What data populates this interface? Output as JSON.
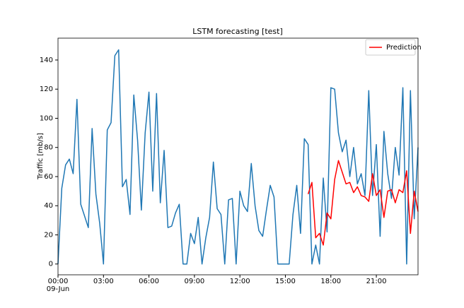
{
  "chart_data": {
    "type": "line",
    "title": "LSTM forecasting [test]",
    "ylabel": "Traffic [mb/s]",
    "x_date_label": "09-Jun",
    "x": [
      0,
      0.25,
      0.5,
      0.75,
      1,
      1.25,
      1.5,
      1.75,
      2,
      2.25,
      2.5,
      2.75,
      3,
      3.25,
      3.5,
      3.75,
      4,
      4.25,
      4.5,
      4.75,
      5,
      5.25,
      5.5,
      5.75,
      6,
      6.25,
      6.5,
      6.75,
      7,
      7.25,
      7.5,
      7.75,
      8,
      8.25,
      8.5,
      8.75,
      9,
      9.25,
      9.5,
      9.75,
      10,
      10.25,
      10.5,
      10.75,
      11,
      11.25,
      11.5,
      11.75,
      12,
      12.25,
      12.5,
      12.75,
      13,
      13.25,
      13.5,
      13.75,
      14,
      14.25,
      14.5,
      14.75,
      15,
      15.25,
      15.5,
      15.75,
      16,
      16.25,
      16.5,
      16.75,
      17,
      17.25,
      17.5,
      17.75,
      18,
      18.25,
      18.5,
      18.75,
      19,
      19.25,
      19.5,
      19.75,
      20,
      20.25,
      20.5,
      20.75,
      21,
      21.25,
      21.5,
      21.75,
      22,
      22.25,
      22.5,
      22.75,
      23,
      23.25,
      23.5,
      23.75
    ],
    "series": [
      {
        "color": "#1f77b4",
        "values": [
          0,
          52,
          68,
          72,
          62,
          113,
          41,
          33,
          25,
          93,
          48,
          28,
          0,
          92,
          97,
          143,
          147,
          53,
          58,
          34,
          116,
          85,
          37,
          90,
          118,
          50,
          117,
          42,
          78,
          25,
          26,
          35,
          41,
          0,
          0,
          21,
          14,
          32,
          0,
          18,
          32,
          70,
          38,
          34,
          0,
          44,
          45,
          0,
          50,
          40,
          36,
          69,
          40,
          23,
          19,
          37,
          54,
          46,
          0,
          0,
          0,
          0,
          34,
          54,
          21,
          86,
          82,
          0,
          13,
          0,
          59,
          22,
          121,
          120,
          90,
          77,
          85,
          60,
          80,
          55,
          62,
          47,
          119,
          47,
          82,
          19,
          91,
          62,
          45,
          80,
          61,
          121,
          0,
          119,
          31,
          80
        ]
      },
      {
        "name": "Prediction",
        "color": "#ff0000",
        "values": [
          null,
          null,
          null,
          null,
          null,
          null,
          null,
          null,
          null,
          null,
          null,
          null,
          null,
          null,
          null,
          null,
          null,
          null,
          null,
          null,
          null,
          null,
          null,
          null,
          null,
          null,
          null,
          null,
          null,
          null,
          null,
          null,
          null,
          null,
          null,
          null,
          null,
          null,
          null,
          null,
          null,
          null,
          null,
          null,
          null,
          null,
          null,
          null,
          null,
          null,
          null,
          null,
          null,
          null,
          null,
          null,
          null,
          null,
          null,
          null,
          null,
          null,
          null,
          null,
          null,
          null,
          48,
          56,
          18,
          21,
          13,
          35,
          31,
          58,
          71,
          63,
          55,
          56,
          49,
          53,
          47,
          46,
          43,
          62,
          47,
          51,
          32,
          50,
          51,
          42,
          51,
          49,
          64,
          21,
          50,
          36
        ]
      }
    ],
    "xlim": [
      0,
      23.75
    ],
    "xticks": [
      {
        "value": 0,
        "label": "00:00"
      },
      {
        "value": 3,
        "label": "03:00"
      },
      {
        "value": 6,
        "label": "06:00"
      },
      {
        "value": 9,
        "label": "09:00"
      },
      {
        "value": 12,
        "label": "12:00"
      },
      {
        "value": 15,
        "label": "15:00"
      },
      {
        "value": 18,
        "label": "18:00"
      },
      {
        "value": 21,
        "label": "21:00"
      }
    ],
    "ylim": [
      -7.4,
      155
    ],
    "yticks": [
      0,
      20,
      40,
      60,
      80,
      100,
      120,
      140
    ],
    "legend": "upper right",
    "grid": false
  }
}
